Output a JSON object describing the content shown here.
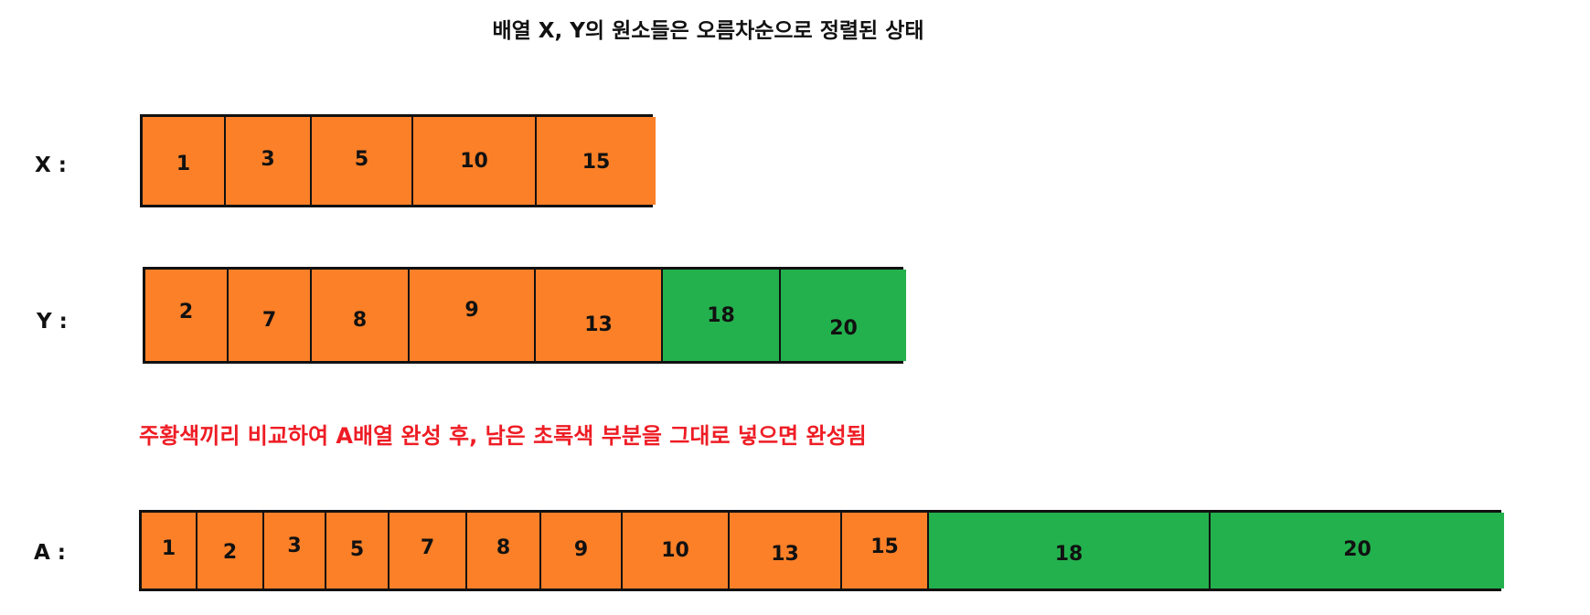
{
  "title": "배열 X, Y의 원소들은 오름차순으로 정렬된 상태",
  "colors": {
    "orange": "#fb8028",
    "green": "#23b14d",
    "note_red": "#ee1c24"
  },
  "arrays": {
    "X": {
      "label": "X :",
      "cells": [
        {
          "value": "1",
          "color": "orange"
        },
        {
          "value": "3",
          "color": "orange"
        },
        {
          "value": "5",
          "color": "orange"
        },
        {
          "value": "10",
          "color": "orange"
        },
        {
          "value": "15",
          "color": "orange"
        }
      ]
    },
    "Y": {
      "label": "Y :",
      "cells": [
        {
          "value": "2",
          "color": "orange"
        },
        {
          "value": "7",
          "color": "orange"
        },
        {
          "value": "8",
          "color": "orange"
        },
        {
          "value": "9",
          "color": "orange"
        },
        {
          "value": "13",
          "color": "orange"
        },
        {
          "value": "18",
          "color": "green"
        },
        {
          "value": "20",
          "color": "green"
        }
      ]
    },
    "A": {
      "label": "A :",
      "cells": [
        {
          "value": "1",
          "color": "orange"
        },
        {
          "value": "2",
          "color": "orange"
        },
        {
          "value": "3",
          "color": "orange"
        },
        {
          "value": "5",
          "color": "orange"
        },
        {
          "value": "7",
          "color": "orange"
        },
        {
          "value": "8",
          "color": "orange"
        },
        {
          "value": "9",
          "color": "orange"
        },
        {
          "value": "10",
          "color": "orange"
        },
        {
          "value": "13",
          "color": "orange"
        },
        {
          "value": "15",
          "color": "orange"
        },
        {
          "value": "18",
          "color": "green"
        },
        {
          "value": "20",
          "color": "green"
        }
      ]
    }
  },
  "note": "주황색끼리 비교하여 A배열 완성 후, 남은 초록색 부분을 그대로 넣으면 완성됨"
}
